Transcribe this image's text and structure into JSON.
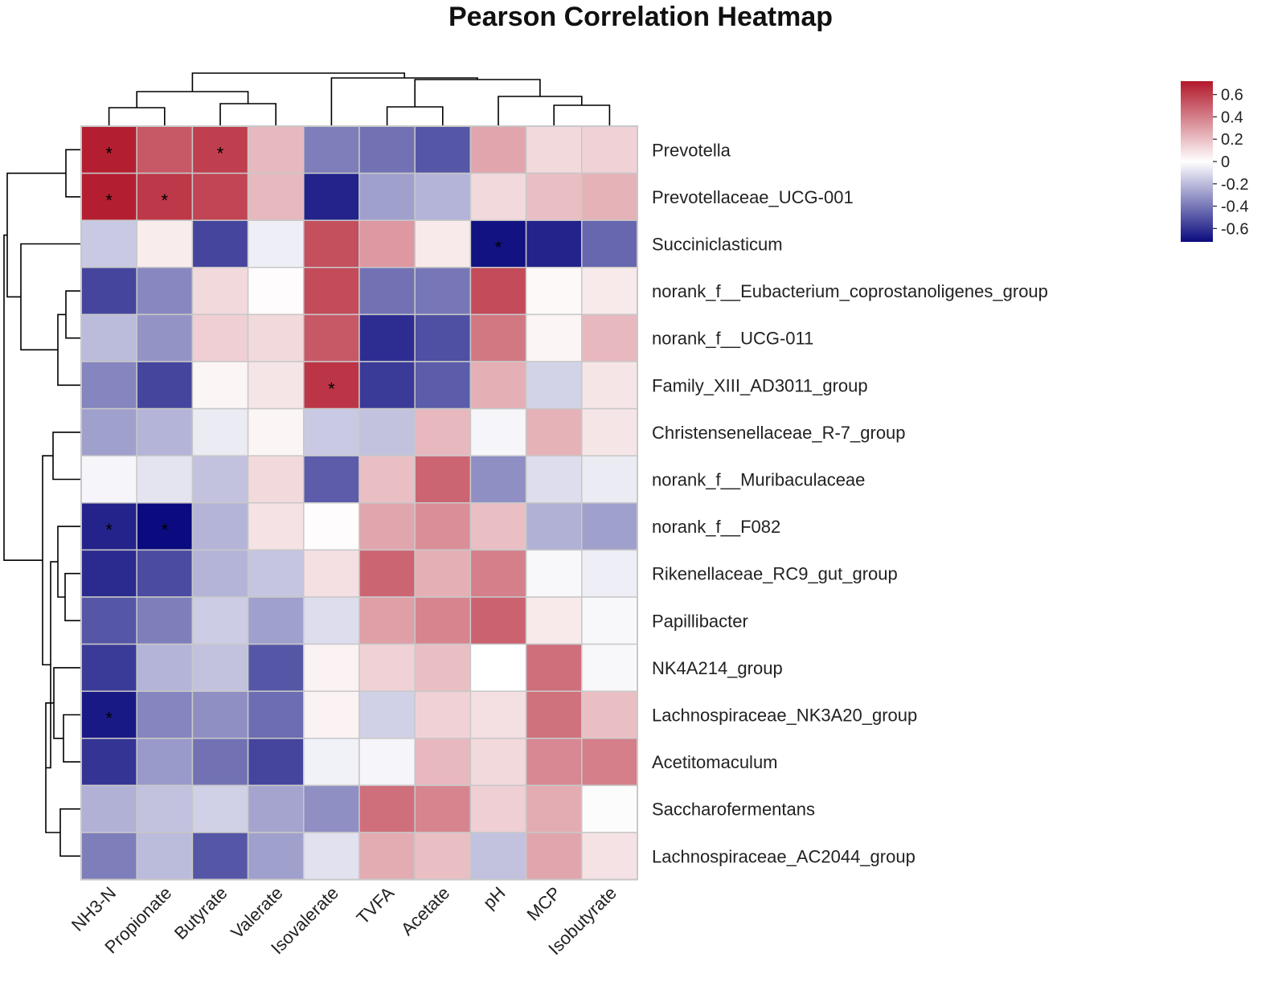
{
  "chart_data": {
    "type": "heatmap",
    "title": "Pearson Correlation Heatmap",
    "columns": [
      "NH3-N",
      "Propionate",
      "Butyrate",
      "Valerate",
      "Isovalerate",
      "TVFA",
      "Acetate",
      "pH",
      "MCP",
      "Isobutyrate"
    ],
    "rows": [
      "Prevotella",
      "Prevotellaceae_UCG-001",
      "Succiniclasticum",
      "norank_f__Eubacterium_coprostanoligenes_group",
      "norank_f__UCG-011",
      "Family_XIII_AD3011_group",
      "Christensenellaceae_R-7_group",
      "norank_f__Muribaculaceae",
      "norank_f__F082",
      "Rikenellaceae_RC9_gut_group",
      "Papillibacter",
      "NK4A214_group",
      "Lachnospiraceae_NK3A20_group",
      "Acetitomaculum",
      "Saccharofermentans",
      "Lachnospiraceae_AC2044_group"
    ],
    "values": [
      [
        0.7,
        0.52,
        0.6,
        0.22,
        -0.38,
        -0.42,
        -0.5,
        0.28,
        0.12,
        0.14
      ],
      [
        0.7,
        0.62,
        0.58,
        0.22,
        -0.65,
        -0.28,
        -0.22,
        0.12,
        0.2,
        0.24
      ],
      [
        -0.16,
        0.06,
        -0.55,
        -0.05,
        0.55,
        0.32,
        0.07,
        -0.7,
        -0.65,
        -0.45
      ],
      [
        -0.55,
        -0.35,
        0.12,
        0.01,
        0.56,
        -0.42,
        -0.4,
        0.56,
        0.02,
        0.07
      ],
      [
        -0.2,
        -0.32,
        0.15,
        0.12,
        0.52,
        -0.62,
        -0.52,
        0.42,
        0.03,
        0.22
      ],
      [
        -0.36,
        -0.55,
        0.03,
        0.08,
        0.63,
        -0.58,
        -0.48,
        0.25,
        -0.13,
        0.08
      ],
      [
        -0.28,
        -0.22,
        -0.06,
        0.03,
        -0.16,
        -0.18,
        0.22,
        -0.03,
        0.24,
        0.08
      ],
      [
        -0.03,
        -0.08,
        -0.18,
        0.12,
        -0.48,
        0.2,
        0.48,
        -0.33,
        -0.1,
        -0.06
      ],
      [
        -0.65,
        -0.72,
        -0.22,
        0.09,
        0.01,
        0.28,
        0.35,
        0.2,
        -0.23,
        -0.28
      ],
      [
        -0.63,
        -0.53,
        -0.22,
        -0.17,
        0.1,
        0.48,
        0.25,
        0.4,
        -0.02,
        -0.05
      ],
      [
        -0.5,
        -0.38,
        -0.15,
        -0.28,
        -0.1,
        0.3,
        0.38,
        0.49,
        0.07,
        -0.02
      ],
      [
        -0.58,
        -0.22,
        -0.18,
        -0.5,
        0.04,
        0.14,
        0.2,
        0.0,
        0.45,
        -0.02
      ],
      [
        -0.68,
        -0.36,
        -0.33,
        -0.43,
        0.04,
        -0.14,
        0.14,
        0.1,
        0.44,
        0.2
      ],
      [
        -0.6,
        -0.3,
        -0.42,
        -0.55,
        -0.04,
        -0.03,
        0.22,
        0.12,
        0.37,
        0.4
      ],
      [
        -0.23,
        -0.18,
        -0.14,
        -0.27,
        -0.33,
        0.45,
        0.38,
        0.15,
        0.26,
        -0.01
      ],
      [
        -0.38,
        -0.2,
        -0.5,
        -0.28,
        -0.09,
        0.26,
        0.2,
        -0.18,
        0.28,
        0.09
      ]
    ],
    "significant": [
      [
        0,
        0
      ],
      [
        0,
        2
      ],
      [
        1,
        0
      ],
      [
        1,
        1
      ],
      [
        2,
        7
      ],
      [
        5,
        4
      ],
      [
        8,
        0
      ],
      [
        8,
        1
      ],
      [
        12,
        0
      ]
    ],
    "significance_marker": "*",
    "colorbar": {
      "range": [
        -0.72,
        0.72
      ],
      "ticks": [
        0.6,
        0.4,
        0.2,
        0,
        -0.2,
        -0.4,
        -0.6
      ],
      "tick_labels": [
        "0.6",
        "0.4",
        "0.2",
        "0",
        "-0.2",
        "-0.4",
        "-0.6"
      ],
      "colors": {
        "high": "#b2182b",
        "mid": "#ffffff",
        "low": "#0b0b7f"
      }
    },
    "row_dendrogram": true,
    "column_dendrogram": true
  }
}
